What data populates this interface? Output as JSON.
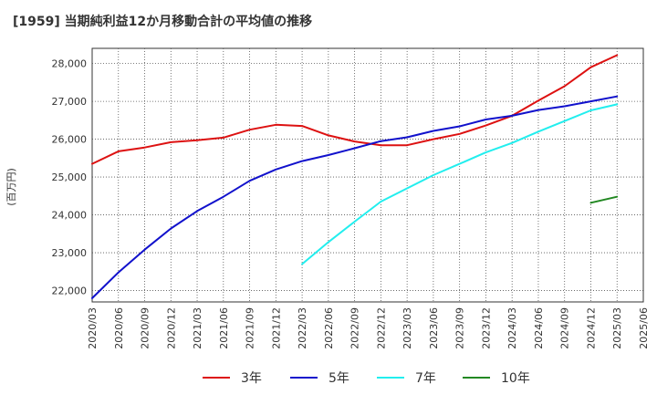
{
  "chart_data": {
    "type": "line",
    "title": "[1959]  当期純利益12か月移動合計の平均値の推移",
    "ylabel": "(百万円)",
    "xlabel": "",
    "ylim": [
      21700,
      28400
    ],
    "yticks": [
      22000,
      23000,
      24000,
      25000,
      26000,
      27000,
      28000
    ],
    "ytick_labels": [
      "22,000",
      "23,000",
      "24,000",
      "25,000",
      "26,000",
      "27,000",
      "28,000"
    ],
    "xticks": [
      "2020/03",
      "2020/06",
      "2020/09",
      "2020/12",
      "2021/03",
      "2021/06",
      "2021/09",
      "2021/12",
      "2022/03",
      "2022/06",
      "2022/09",
      "2022/12",
      "2023/03",
      "2023/06",
      "2023/09",
      "2023/12",
      "2024/03",
      "2024/06",
      "2024/09",
      "2024/12",
      "2025/03",
      "2025/06"
    ],
    "grid": true,
    "legend_position": "bottom",
    "series": [
      {
        "name": "3年",
        "color": "#dd1111",
        "x": [
          "2020/03",
          "2020/06",
          "2020/09",
          "2020/12",
          "2021/03",
          "2021/06",
          "2021/09",
          "2021/12",
          "2022/03",
          "2022/06",
          "2022/09",
          "2022/12",
          "2023/03",
          "2023/06",
          "2023/09",
          "2023/12",
          "2024/03",
          "2024/06",
          "2024/09",
          "2024/12",
          "2025/03"
        ],
        "values": [
          25350,
          25680,
          25780,
          25920,
          25970,
          26040,
          26250,
          26380,
          26350,
          26100,
          25940,
          25840,
          25840,
          26000,
          26140,
          26360,
          26620,
          27020,
          27400,
          27900,
          28220
        ]
      },
      {
        "name": "5年",
        "color": "#1111cc",
        "x": [
          "2020/03",
          "2020/06",
          "2020/09",
          "2020/12",
          "2021/03",
          "2021/06",
          "2021/09",
          "2021/12",
          "2022/03",
          "2022/06",
          "2022/09",
          "2022/12",
          "2023/03",
          "2023/06",
          "2023/09",
          "2023/12",
          "2024/03",
          "2024/06",
          "2024/09",
          "2024/12",
          "2025/03"
        ],
        "values": [
          21800,
          22480,
          23080,
          23640,
          24100,
          24480,
          24900,
          25200,
          25420,
          25580,
          25760,
          25950,
          26050,
          26220,
          26340,
          26520,
          26620,
          26770,
          26870,
          27000,
          27130
        ]
      },
      {
        "name": "7年",
        "color": "#22eeee",
        "x": [
          "2022/03",
          "2022/06",
          "2022/09",
          "2022/12",
          "2023/03",
          "2023/06",
          "2023/09",
          "2023/12",
          "2024/03",
          "2024/06",
          "2024/09",
          "2024/12",
          "2025/03"
        ],
        "values": [
          22700,
          23280,
          23820,
          24350,
          24700,
          25050,
          25350,
          25650,
          25900,
          26200,
          26480,
          26760,
          26920
        ]
      },
      {
        "name": "10年",
        "color": "#228822",
        "x": [
          "2024/12",
          "2025/03"
        ],
        "values": [
          24320,
          24480
        ]
      }
    ]
  }
}
